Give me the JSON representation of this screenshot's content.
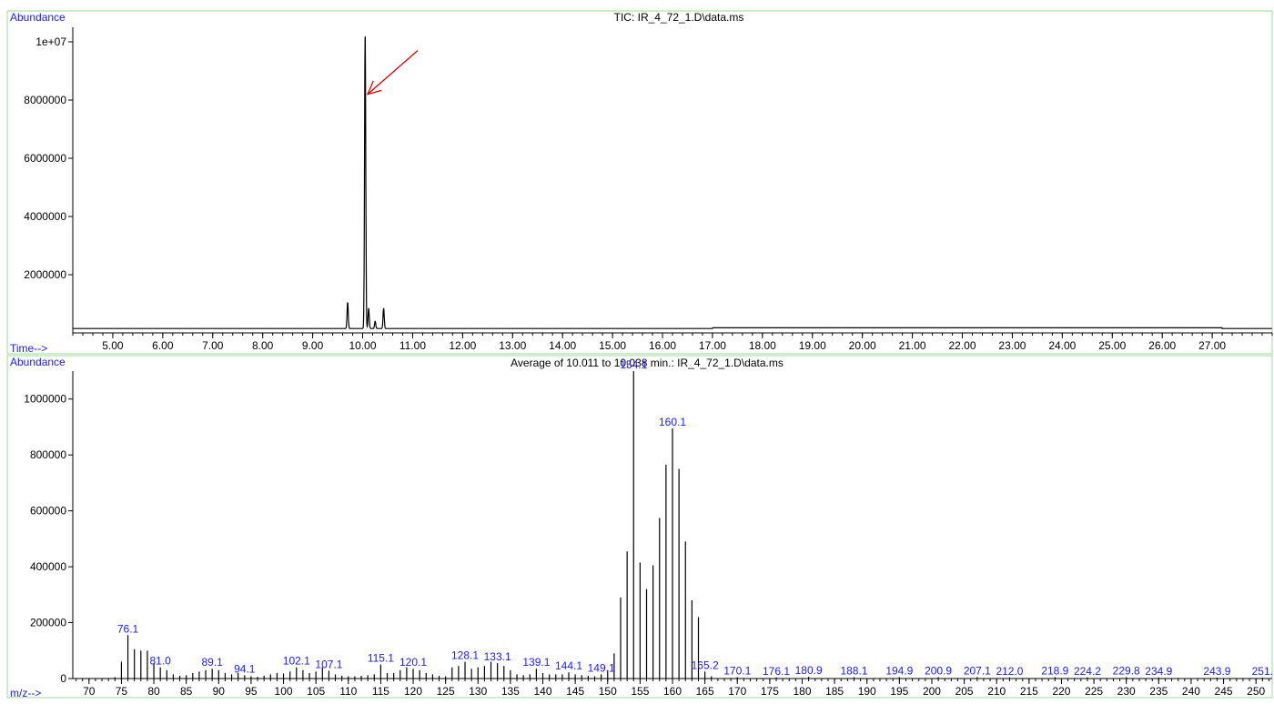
{
  "chart_data": [
    {
      "type": "line",
      "title": "TIC: IR_4_72_1.D\\data.ms",
      "ylabel": "Abundance",
      "xlabel": "Time-->",
      "xlim": [
        4.2,
        28.2
      ],
      "ylim": [
        0,
        10500000
      ],
      "x_ticks": [
        5,
        6,
        7,
        8,
        9,
        10,
        11,
        12,
        13,
        14,
        15,
        16,
        17,
        18,
        19,
        20,
        21,
        22,
        23,
        24,
        25,
        26,
        27
      ],
      "x_tick_labels": [
        "5.00",
        "6.00",
        "7.00",
        "8.00",
        "9.00",
        "10.00",
        "11.00",
        "12.00",
        "13.00",
        "14.00",
        "15.00",
        "16.00",
        "17.00",
        "18.00",
        "19.00",
        "20.00",
        "21.00",
        "22.00",
        "23.00",
        "24.00",
        "25.00",
        "26.00",
        "27.00"
      ],
      "y_ticks": [
        2000000,
        4000000,
        6000000,
        8000000,
        10000000
      ],
      "y_tick_labels": [
        "2000000",
        "4000000",
        "6000000",
        "8000000",
        "1e+07"
      ],
      "grid": false,
      "baseline": 150000,
      "series": [
        {
          "peaks": [
            {
              "x": 9.7,
              "y": 1050000
            },
            {
              "x": 10.05,
              "y": 10300000
            },
            {
              "x": 10.12,
              "y": 850000
            },
            {
              "x": 10.25,
              "y": 400000
            },
            {
              "x": 10.42,
              "y": 850000
            }
          ]
        }
      ],
      "annotations": [
        {
          "type": "arrow",
          "color": "#e00000",
          "from": {
            "x": 11.1,
            "y": 9700000
          },
          "to": {
            "x": 10.1,
            "y": 8200000
          }
        }
      ]
    },
    {
      "type": "bar",
      "title": "Average of 10.011 to 10.038 min.: IR_4_72_1.D\\data.ms",
      "ylabel": "Abundance",
      "xlabel": "m/z-->",
      "xlim": [
        67.5,
        252.5
      ],
      "ylim": [
        0,
        1100000
      ],
      "x_ticks": [
        70,
        75,
        80,
        85,
        90,
        95,
        100,
        105,
        110,
        115,
        120,
        125,
        130,
        135,
        140,
        145,
        150,
        155,
        160,
        165,
        170,
        175,
        180,
        185,
        190,
        195,
        200,
        205,
        210,
        215,
        220,
        225,
        230,
        235,
        240,
        245,
        250
      ],
      "y_ticks": [
        0,
        200000,
        400000,
        600000,
        800000,
        1000000
      ],
      "y_tick_labels": [
        "0",
        "200000",
        "400000",
        "600000",
        "800000",
        "1000000"
      ],
      "grid": false,
      "mz": [
        74,
        75,
        76,
        77,
        78,
        79,
        80,
        81,
        82,
        83,
        84,
        85,
        86,
        87,
        88,
        89,
        90,
        91,
        92,
        93,
        94,
        95,
        96,
        97,
        98,
        99,
        100,
        101,
        102,
        103,
        104,
        105,
        106,
        107,
        108,
        109,
        110,
        111,
        112,
        113,
        114,
        115,
        116,
        117,
        118,
        119,
        120,
        121,
        122,
        123,
        124,
        125,
        126,
        127,
        128,
        129,
        130,
        131,
        132,
        133,
        134,
        135,
        136,
        137,
        138,
        139,
        140,
        141,
        142,
        143,
        144,
        145,
        146,
        147,
        148,
        149,
        150,
        151,
        152,
        153,
        154,
        155,
        156,
        157,
        158,
        159,
        160,
        161,
        162,
        163,
        164,
        165,
        166,
        170,
        176,
        181,
        188,
        195,
        201,
        207,
        212,
        219,
        224,
        230,
        235,
        244,
        251
      ],
      "abundance": [
        5000,
        60000,
        155000,
        105000,
        100000,
        100000,
        55000,
        40000,
        30000,
        15000,
        10000,
        12000,
        20000,
        25000,
        30000,
        35000,
        30000,
        20000,
        15000,
        20000,
        12000,
        8000,
        6000,
        10000,
        15000,
        20000,
        18000,
        25000,
        40000,
        30000,
        20000,
        25000,
        40000,
        28000,
        15000,
        10000,
        8000,
        8000,
        10000,
        12000,
        15000,
        50000,
        20000,
        20000,
        30000,
        40000,
        35000,
        30000,
        20000,
        15000,
        10000,
        8000,
        40000,
        45000,
        60000,
        35000,
        40000,
        45000,
        60000,
        55000,
        45000,
        30000,
        15000,
        12000,
        15000,
        35000,
        20000,
        15000,
        15000,
        15000,
        22000,
        15000,
        12000,
        10000,
        8000,
        15000,
        30000,
        90000,
        290000,
        455000,
        1100000,
        415000,
        320000,
        405000,
        575000,
        765000,
        895000,
        750000,
        490000,
        280000,
        220000,
        25000,
        8000,
        5000,
        4000,
        6000,
        5000,
        5000,
        5000,
        5000,
        4000,
        5000,
        4000,
        5000,
        4000,
        3000,
        3000
      ],
      "peak_labels": [
        {
          "mz": 76,
          "text": "76.1"
        },
        {
          "mz": 81,
          "text": "81.0"
        },
        {
          "mz": 89,
          "text": "89.1"
        },
        {
          "mz": 94,
          "text": "94.1"
        },
        {
          "mz": 102,
          "text": "102.1"
        },
        {
          "mz": 107,
          "text": "107.1"
        },
        {
          "mz": 115,
          "text": "115.1"
        },
        {
          "mz": 120,
          "text": "120.1"
        },
        {
          "mz": 128,
          "text": "128.1"
        },
        {
          "mz": 133,
          "text": "133.1"
        },
        {
          "mz": 139,
          "text": "139.1"
        },
        {
          "mz": 144,
          "text": "144.1"
        },
        {
          "mz": 149,
          "text": "149.1"
        },
        {
          "mz": 154,
          "text": "154.1"
        },
        {
          "mz": 160,
          "text": "160.1"
        },
        {
          "mz": 165,
          "text": "165.2"
        },
        {
          "mz": 170,
          "text": "170.1"
        },
        {
          "mz": 176,
          "text": "176.1"
        },
        {
          "mz": 181,
          "text": "180.9"
        },
        {
          "mz": 188,
          "text": "188.1"
        },
        {
          "mz": 195,
          "text": "194.9"
        },
        {
          "mz": 201,
          "text": "200.9"
        },
        {
          "mz": 207,
          "text": "207.1"
        },
        {
          "mz": 212,
          "text": "212.0"
        },
        {
          "mz": 219,
          "text": "218.9"
        },
        {
          "mz": 224,
          "text": "224.2"
        },
        {
          "mz": 230,
          "text": "229.8"
        },
        {
          "mz": 235,
          "text": "234.9"
        },
        {
          "mz": 244,
          "text": "243.9"
        },
        {
          "mz": 251,
          "text": "251."
        }
      ]
    }
  ],
  "colors": {
    "label_blue": "#1a1aff",
    "title_black": "#000000",
    "frame_green": "#99dd99",
    "trace": "#000000",
    "arrow": "#e00000"
  }
}
